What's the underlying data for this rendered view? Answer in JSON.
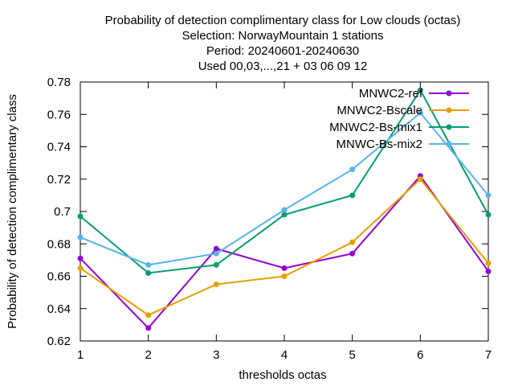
{
  "chart_data": {
    "type": "line",
    "title_lines": [
      "Probability of detection complimentary class  for Low clouds (octas)",
      "Selection: NorwayMountain      1 stations",
      "Period: 20240601-20240630",
      "Used 00,03,...,21 + 03 06 09 12"
    ],
    "xlabel": "thresholds octas",
    "ylabel": "Probability of detection complimentary class",
    "x": [
      1,
      2,
      3,
      4,
      5,
      6,
      7
    ],
    "xlim": [
      1,
      7
    ],
    "ylim": [
      0.62,
      0.78
    ],
    "xticks": [
      "1",
      "2",
      "3",
      "4",
      "5",
      "6",
      "7"
    ],
    "yticks": [
      "0.62",
      "0.64",
      "0.66",
      "0.68",
      "0.7",
      "0.72",
      "0.74",
      "0.76",
      "0.78"
    ],
    "grid": false,
    "legend_position": "top-right",
    "series": [
      {
        "name": "MNWC2-ref",
        "color": "#9400d3",
        "values": [
          0.671,
          0.628,
          0.677,
          0.665,
          0.674,
          0.722,
          0.663
        ]
      },
      {
        "name": "MNWC2-Bscale",
        "color": "#e69f00",
        "values": [
          0.665,
          0.636,
          0.655,
          0.66,
          0.681,
          0.72,
          0.668
        ]
      },
      {
        "name": "MNWC2-Bs-mix1",
        "color": "#009e73",
        "values": [
          0.697,
          0.662,
          0.667,
          0.698,
          0.71,
          0.775,
          0.698
        ]
      },
      {
        "name": "MNWC-Bs-mix2",
        "color": "#56b4e9",
        "values": [
          0.684,
          0.667,
          0.674,
          0.701,
          0.726,
          0.761,
          0.71
        ]
      }
    ]
  }
}
